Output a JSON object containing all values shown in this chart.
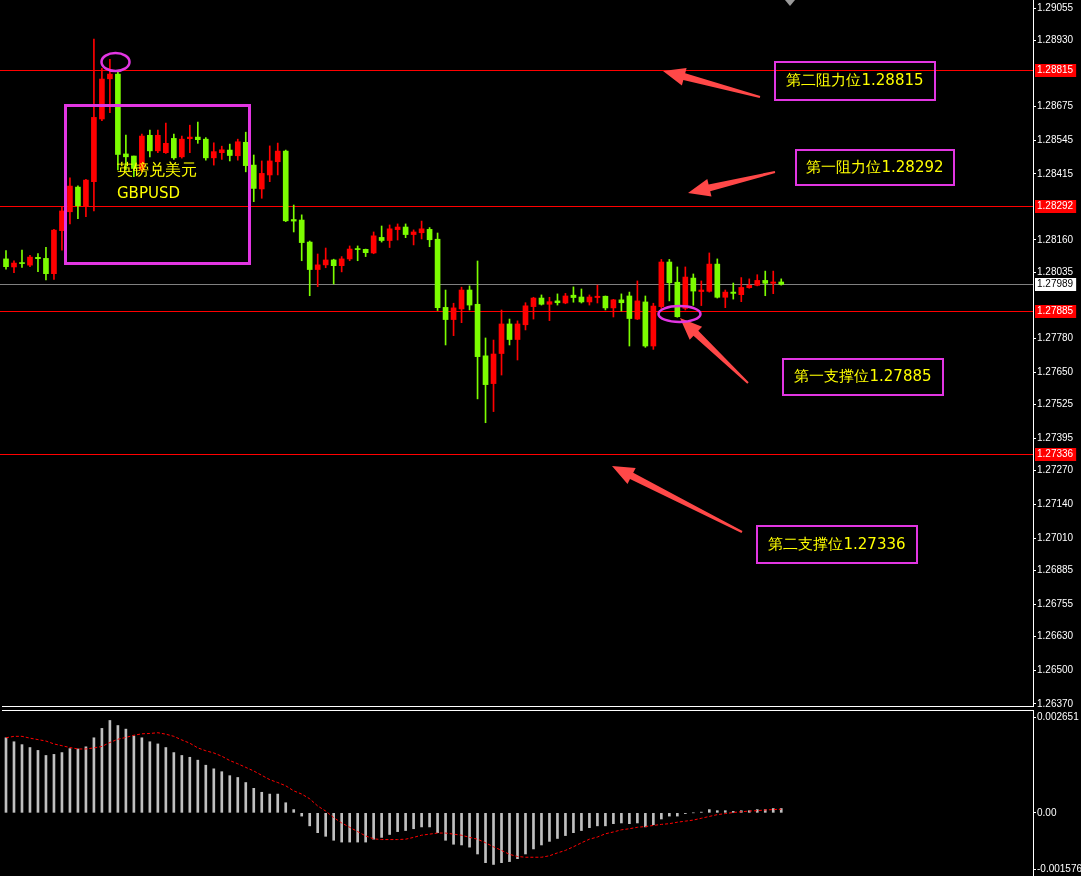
{
  "chart_data": [
    {
      "type": "candlestick",
      "title": "英镑兑美元",
      "subtitle": "GBPUSD",
      "categories": [
        null,
        null,
        null,
        null,
        null,
        null,
        null,
        null,
        null,
        null,
        null,
        null,
        null,
        null,
        null,
        null,
        null,
        null,
        null,
        null,
        null,
        null,
        null,
        null,
        null,
        null,
        null,
        null,
        null,
        null,
        null,
        null,
        null,
        null,
        null,
        null,
        null,
        null,
        null,
        null,
        null,
        null,
        null,
        null,
        null,
        null,
        null,
        null,
        null,
        null,
        null,
        null,
        null,
        null,
        null,
        null,
        null,
        null,
        null,
        null,
        null,
        null,
        null,
        null,
        null,
        null,
        null,
        null,
        null,
        null,
        null,
        null,
        null,
        null,
        null,
        null,
        null,
        null,
        null,
        null,
        null,
        null,
        null,
        null,
        null,
        null,
        null,
        null,
        null,
        null,
        null,
        null,
        null,
        null,
        null,
        null,
        null,
        null,
        null,
        null,
        null,
        null,
        null,
        null,
        null,
        null,
        null,
        null,
        null,
        null,
        null,
        null,
        null,
        null,
        null,
        null,
        null,
        null,
        null,
        null,
        null,
        null,
        null,
        null,
        null,
        null,
        null,
        null,
        null
      ],
      "ohlc": [
        [
          1.28087,
          1.28119,
          1.28047,
          1.28057
        ],
        [
          1.28056,
          1.2808,
          1.28034,
          1.28071
        ],
        [
          1.28071,
          1.28121,
          1.28054,
          1.28069
        ],
        [
          1.28063,
          1.28101,
          1.28057,
          1.28094
        ],
        [
          1.28093,
          1.28108,
          1.28038,
          1.28088
        ],
        [
          1.28089,
          1.28132,
          1.28006,
          1.2803
        ],
        [
          1.2803,
          1.28201,
          1.28008,
          1.28198
        ],
        [
          1.28196,
          1.28288,
          1.28121,
          1.28272
        ],
        [
          1.28269,
          1.284,
          1.28222,
          1.28368
        ],
        [
          1.28364,
          1.28369,
          1.28242,
          1.28292
        ],
        [
          1.28291,
          1.28394,
          1.2825,
          1.28391
        ],
        [
          1.28385,
          1.28935,
          1.28272,
          1.28633
        ],
        [
          1.28627,
          1.28822,
          1.2862,
          1.28781
        ],
        [
          1.28782,
          1.28857,
          1.28651,
          1.288
        ],
        [
          1.288,
          1.28809,
          1.2843,
          1.2849
        ],
        [
          1.28492,
          1.28565,
          1.2843,
          1.28481
        ],
        [
          1.28484,
          1.28484,
          1.28404,
          1.28436
        ],
        [
          1.2843,
          1.28569,
          1.28423,
          1.28561
        ],
        [
          1.28564,
          1.28584,
          1.28481,
          1.28504
        ],
        [
          1.28504,
          1.28584,
          1.28497,
          1.28564
        ],
        [
          1.28497,
          1.28611,
          1.28494,
          1.28533
        ],
        [
          1.28552,
          1.28569,
          1.28471,
          1.28477
        ],
        [
          1.28481,
          1.28561,
          1.28476,
          1.28549
        ],
        [
          1.28551,
          1.28603,
          1.28497,
          1.28557
        ],
        [
          1.28557,
          1.28615,
          1.28533,
          1.28547
        ],
        [
          1.28549,
          1.28555,
          1.28468,
          1.28477
        ],
        [
          1.28477,
          1.28535,
          1.28449,
          1.28501
        ],
        [
          1.28497,
          1.28522,
          1.28471,
          1.28508
        ],
        [
          1.28507,
          1.2853,
          1.28465,
          1.28486
        ],
        [
          1.28485,
          1.28549,
          1.28468,
          1.28539
        ],
        [
          1.28537,
          1.28576,
          1.28423,
          1.28447
        ],
        [
          1.28449,
          1.28488,
          1.28308,
          1.28359
        ],
        [
          1.28357,
          1.28465,
          1.28321,
          1.28417
        ],
        [
          1.28411,
          1.28523,
          1.28385,
          1.28465
        ],
        [
          1.28462,
          1.28534,
          1.28411,
          1.28503
        ],
        [
          1.28503,
          1.28507,
          1.28231,
          1.28234
        ],
        [
          1.28239,
          1.28295,
          1.28191,
          1.28233
        ],
        [
          1.28237,
          1.28257,
          1.2808,
          1.2815
        ],
        [
          1.28152,
          1.28156,
          1.27945,
          1.28046
        ],
        [
          1.28046,
          1.28106,
          1.2798,
          1.28064
        ],
        [
          1.28064,
          1.28129,
          1.28053,
          1.28083
        ],
        [
          1.28083,
          1.28086,
          1.2799,
          1.28061
        ],
        [
          1.28061,
          1.28096,
          1.28037,
          1.28087
        ],
        [
          1.28087,
          1.28137,
          1.2808,
          1.28125
        ],
        [
          1.28125,
          1.28137,
          1.2808,
          1.28123
        ],
        [
          1.28124,
          1.28125,
          1.28096,
          1.28111
        ],
        [
          1.2811,
          1.28191,
          1.28107,
          1.28176
        ],
        [
          1.2817,
          1.28214,
          1.28152,
          1.28158
        ],
        [
          1.28158,
          1.28218,
          1.28131,
          1.28203
        ],
        [
          1.282,
          1.28222,
          1.2816,
          1.2821
        ],
        [
          1.2821,
          1.28222,
          1.28169,
          1.28181
        ],
        [
          1.28181,
          1.28199,
          1.28141,
          1.28191
        ],
        [
          1.28188,
          1.28233,
          1.28164,
          1.28203
        ],
        [
          1.28201,
          1.28208,
          1.28134,
          1.28161
        ],
        [
          1.28163,
          1.28187,
          1.27888,
          1.27899
        ],
        [
          1.279,
          1.27967,
          1.27755,
          1.27853
        ],
        [
          1.27853,
          1.27916,
          1.27791,
          1.27898
        ],
        [
          1.27894,
          1.27978,
          1.27841,
          1.27967
        ],
        [
          1.27967,
          1.27983,
          1.2789,
          1.27909
        ],
        [
          1.27912,
          1.28079,
          1.27547,
          1.2771
        ],
        [
          1.27713,
          1.27782,
          1.27455,
          1.27602
        ],
        [
          1.27606,
          1.27774,
          1.27498,
          1.2772
        ],
        [
          1.27722,
          1.2789,
          1.27639,
          1.27836
        ],
        [
          1.27836,
          1.27855,
          1.27755,
          1.27776
        ],
        [
          1.27776,
          1.27848,
          1.27697,
          1.27836
        ],
        [
          1.27833,
          1.27918,
          1.27813,
          1.27906
        ],
        [
          1.27903,
          1.27939,
          1.27855,
          1.27936
        ],
        [
          1.27936,
          1.27948,
          1.27909,
          1.27912
        ],
        [
          1.27912,
          1.27939,
          1.27849,
          1.27922
        ],
        [
          1.27925,
          1.27952,
          1.27909,
          1.27918
        ],
        [
          1.27917,
          1.27954,
          1.27914,
          1.27944
        ],
        [
          1.27947,
          1.27979,
          1.2792,
          1.27938
        ],
        [
          1.2794,
          1.27971,
          1.27917,
          1.27921
        ],
        [
          1.27921,
          1.27948,
          1.27909,
          1.2794
        ],
        [
          1.27938,
          1.27986,
          1.27917,
          1.27943
        ],
        [
          1.27943,
          1.27944,
          1.2789,
          1.27898
        ],
        [
          1.27898,
          1.27931,
          1.27863,
          1.27929
        ],
        [
          1.27929,
          1.27952,
          1.27886,
          1.27918
        ],
        [
          1.27944,
          1.27959,
          1.27751,
          1.27857
        ],
        [
          1.27855,
          1.28002,
          1.27853,
          1.27925
        ],
        [
          1.27921,
          1.27944,
          1.27746,
          1.27751
        ],
        [
          1.27751,
          1.27916,
          1.27738,
          1.27905
        ],
        [
          1.27903,
          1.28085,
          1.27896,
          1.28075
        ],
        [
          1.28075,
          1.28085,
          1.27925,
          1.27995
        ],
        [
          1.27997,
          1.28056,
          1.27862,
          1.27864
        ],
        [
          1.27896,
          1.28056,
          1.2789,
          1.28017
        ],
        [
          1.28013,
          1.28029,
          1.27908,
          1.27963
        ],
        [
          1.27961,
          1.28002,
          1.27907,
          1.27967
        ],
        [
          1.27962,
          1.2811,
          1.27959,
          1.28067
        ],
        [
          1.28067,
          1.28087,
          1.27936,
          1.27939
        ],
        [
          1.27939,
          1.27967,
          1.27899,
          1.27959
        ],
        [
          1.27959,
          1.27994,
          1.27932,
          1.27954
        ],
        [
          1.27949,
          1.28015,
          1.27922,
          1.27977
        ],
        [
          1.27976,
          1.2801,
          1.27974,
          1.27985
        ],
        [
          1.27985,
          1.28026,
          1.27983,
          1.28004
        ],
        [
          1.28004,
          1.2804,
          1.27945,
          1.27993
        ],
        [
          1.27993,
          1.2804,
          1.27953,
          1.27998
        ],
        [
          1.27998,
          1.2801,
          1.27986,
          1.27989
        ],
        null,
        null,
        null,
        null,
        null,
        null,
        null,
        null,
        null,
        null,
        null,
        null,
        null,
        null,
        null,
        null,
        null,
        null,
        null,
        null,
        null,
        null,
        null,
        null,
        null,
        null,
        null,
        null,
        null,
        null,
        null
      ],
      "colors": [
        "#7cfc00",
        "#ff0000",
        "#7cfc00",
        "#ff0000",
        "#7cfc00",
        "#7cfc00",
        "#ff0000",
        "#ff0000",
        "#ff0000",
        "#7cfc00",
        "#ff0000",
        "#ff0000",
        "#ff0000",
        "#ff0000",
        "#7cfc00",
        "#7cfc00",
        "#7cfc00",
        "#ff0000",
        "#7cfc00",
        "#ff0000",
        "#ff0000",
        "#7cfc00",
        "#ff0000",
        "#ff0000",
        "#7cfc00",
        "#7cfc00",
        "#ff0000",
        "#ff0000",
        "#7cfc00",
        "#ff0000",
        "#7cfc00",
        "#7cfc00",
        "#ff0000",
        "#ff0000",
        "#ff0000",
        "#7cfc00",
        "#7cfc00",
        "#7cfc00",
        "#7cfc00",
        "#ff0000",
        "#ff0000",
        "#7cfc00",
        "#ff0000",
        "#ff0000",
        "#7cfc00",
        "#7cfc00",
        "#ff0000",
        "#7cfc00",
        "#ff0000",
        "#ff0000",
        "#7cfc00",
        "#ff0000",
        "#ff0000",
        "#7cfc00",
        "#7cfc00",
        "#7cfc00",
        "#ff0000",
        "#ff0000",
        "#7cfc00",
        "#7cfc00",
        "#7cfc00",
        "#ff0000",
        "#ff0000",
        "#7cfc00",
        "#ff0000",
        "#ff0000",
        "#ff0000",
        "#7cfc00",
        "#ff0000",
        "#7cfc00",
        "#ff0000",
        "#7cfc00",
        "#7cfc00",
        "#ff0000",
        "#ff0000",
        "#7cfc00",
        "#ff0000",
        "#7cfc00",
        "#7cfc00",
        "#ff0000",
        "#7cfc00",
        "#ff0000",
        "#ff0000",
        "#7cfc00",
        "#7cfc00",
        "#ff0000",
        "#7cfc00",
        "#ff0000",
        "#ff0000",
        "#7cfc00",
        "#ff0000",
        "#7cfc00",
        "#ff0000",
        "#ff0000",
        "#ff0000",
        "#7cfc00",
        "#ff0000",
        "#7cfc00",
        null,
        null,
        null,
        null,
        null,
        null,
        null,
        null,
        null,
        null,
        null,
        null,
        null,
        null,
        null,
        null,
        null,
        null,
        null,
        null,
        null,
        null,
        null,
        null,
        null,
        null,
        null,
        null,
        null,
        null,
        null
      ],
      "ylim": [
        1.26362,
        1.29086
      ],
      "yticks": [
        1.29055,
        {
          "value": 1.2893,
          "label": "1.28930"
        },
        1.28675,
        1.28545,
        1.28415,
        {
          "value": 1.2816,
          "label": "1.28160"
        },
        1.28035,
        {
          "value": 1.2778,
          "label": "1.27780"
        },
        {
          "value": 1.2765,
          "label": "1.27650"
        },
        1.27525,
        1.27395,
        {
          "value": 1.2727,
          "label": "1.27270"
        },
        {
          "value": 1.2714,
          "label": "1.27140"
        },
        {
          "value": 1.2701,
          "label": "1.27010"
        },
        1.26885,
        1.26755,
        {
          "value": 1.2663,
          "label": "1.26630"
        },
        {
          "value": 1.265,
          "label": "1.26500"
        },
        {
          "value": 1.2637,
          "label": "1.26370"
        }
      ],
      "tick_labels": "y",
      "ref_lines": [
        {
          "axis": "y",
          "value": 1.28815,
          "label": "1.28815",
          "color": "#ff0000"
        },
        {
          "axis": "y",
          "value": 1.28292,
          "label": "1.28292",
          "color": "#ff0000"
        },
        {
          "axis": "y",
          "value": 1.27989,
          "label": "1.27989",
          "color": "#808080"
        },
        {
          "axis": "y",
          "value": 1.27885,
          "label": "1.27885",
          "color": "#ff0000"
        },
        {
          "axis": "y",
          "value": 1.27336,
          "label": "1.27336",
          "color": "#ff0000"
        }
      ],
      "annotations": [
        "第二阻力位1.28815",
        "第一阻力位1.28292",
        "第一支撑位1.27885",
        "第二支撑位1.27336"
      ]
    },
    {
      "type": "bar",
      "categories": [
        null,
        null,
        null,
        null,
        null,
        null,
        null,
        null,
        null,
        null,
        null,
        null,
        null,
        null,
        null,
        null,
        null,
        null,
        null,
        null,
        null,
        null,
        null,
        null,
        null,
        null,
        null,
        null,
        null,
        null,
        null,
        null,
        null,
        null,
        null,
        null,
        null,
        null,
        null,
        null,
        null,
        null,
        null,
        null,
        null,
        null,
        null,
        null,
        null,
        null,
        null,
        null,
        null,
        null,
        null,
        null,
        null,
        null,
        null,
        null,
        null,
        null,
        null,
        null,
        null,
        null,
        null,
        null,
        null,
        null,
        null,
        null,
        null,
        null,
        null,
        null,
        null,
        null,
        null,
        null,
        null,
        null,
        null,
        null,
        null,
        null,
        null,
        null,
        null,
        null,
        null,
        null,
        null,
        null,
        null,
        null,
        null,
        null,
        null,
        null,
        null,
        null,
        null,
        null,
        null,
        null,
        null,
        null,
        null,
        null,
        null,
        null,
        null,
        null,
        null,
        null,
        null,
        null,
        null,
        null,
        null,
        null,
        null,
        null,
        null,
        null,
        null,
        null,
        null
      ],
      "series": [
        {
          "type": "bar",
          "color": "#c0c0c0",
          "values": [
            0.00208,
            0.00197,
            0.00189,
            0.00181,
            0.00173,
            0.00159,
            0.00162,
            0.00167,
            0.00178,
            0.00177,
            0.00183,
            0.00208,
            0.00234,
            0.00256,
            0.00242,
            0.00232,
            0.00213,
            0.00208,
            0.00197,
            0.00191,
            0.00181,
            0.00167,
            0.00159,
            0.00154,
            0.00146,
            0.00132,
            0.00122,
            0.00114,
            0.00103,
            0.00098,
            0.00084,
            0.00068,
            0.00057,
            0.00052,
            0.00052,
            0.00028,
            9e-05,
            -9e-05,
            -0.00036,
            -0.00055,
            -0.00065,
            -0.00076,
            -0.00081,
            -0.00081,
            -0.00081,
            -0.00081,
            -0.00073,
            -0.00068,
            -0.0006,
            -0.00052,
            -0.00049,
            -0.00044,
            -0.00039,
            -0.00039,
            -0.00055,
            -0.00076,
            -0.00087,
            -0.00089,
            -0.00095,
            -0.00114,
            -0.00138,
            -0.00143,
            -0.00138,
            -0.00135,
            -0.00127,
            -0.00114,
            -0.001,
            -0.00089,
            -0.00079,
            -0.00071,
            -0.00063,
            -0.00055,
            -0.00049,
            -0.00041,
            -0.00036,
            -0.00036,
            -0.0003,
            -0.00028,
            -0.0003,
            -0.00028,
            -0.00039,
            -0.00033,
            -0.00017,
            -9e-05,
            -9e-05,
            -2e-05,
            0,
            2e-05,
            9e-05,
            6e-05,
            6e-05,
            4e-05,
            6e-05,
            6e-05,
            9e-05,
            9e-05,
            0.00012,
            0.00012,
            null,
            null,
            null,
            null,
            null,
            null,
            null,
            null,
            null,
            null,
            null,
            null,
            null,
            null,
            null,
            null,
            null,
            null,
            null,
            null,
            null,
            null,
            null,
            null,
            null,
            null,
            null,
            null,
            null,
            null,
            null
          ]
        },
        {
          "type": "line",
          "color": "#ff0000",
          "line_style": "dotted",
          "values": [
            0.00208,
            0.00212,
            0.00212,
            0.00207,
            0.00203,
            0.00199,
            0.00191,
            0.00186,
            0.00181,
            0.00177,
            0.00177,
            0.0018,
            0.00184,
            0.00195,
            0.00204,
            0.00209,
            0.00215,
            0.00219,
            0.0022,
            0.00222,
            0.00218,
            0.00212,
            0.00202,
            0.00193,
            0.0018,
            0.00172,
            0.00166,
            0.00157,
            0.00145,
            0.00136,
            0.00126,
            0.00116,
            0.00104,
            0.00092,
            0.00084,
            0.00075,
            0.00061,
            0.00052,
            0.00039,
            0.00019,
            5e-05,
            -0.00013,
            -0.00028,
            -0.0004,
            -0.00052,
            -0.00064,
            -0.00072,
            -0.00074,
            -0.00074,
            -0.00074,
            -0.00073,
            -0.00068,
            -0.00062,
            -0.00059,
            -0.00056,
            -0.00056,
            -0.00059,
            -0.00062,
            -0.00068,
            -0.00073,
            -0.00083,
            -0.00094,
            -0.00104,
            -0.00115,
            -0.00121,
            -0.00123,
            -0.00123,
            -0.00123,
            -0.00119,
            -0.00111,
            -0.00104,
            -0.00094,
            -0.00083,
            -0.00073,
            -0.00067,
            -0.00058,
            -0.00053,
            -0.00047,
            -0.00044,
            -0.0004,
            -0.00038,
            -0.00035,
            -0.00032,
            -0.0003,
            -0.00026,
            -0.00023,
            -0.0002,
            -0.00015,
            -0.0001,
            -5e-05,
            -2e-05,
            1e-05,
            3e-05,
            5e-05,
            6e-05,
            8e-05,
            9e-05,
            0.0001,
            null,
            null,
            null,
            null,
            null,
            null,
            null,
            null,
            null,
            null,
            null,
            null,
            null,
            null,
            null,
            null,
            null,
            null,
            null,
            null,
            null,
            null,
            null,
            null,
            null,
            null,
            null,
            null,
            null,
            null,
            null
          ]
        }
      ],
      "ylim": [
        -0.00175,
        0.00285
      ],
      "yticks": [
        0.002651,
        {
          "value": 0,
          "label": "0.00"
        },
        -0.001576
      ],
      "tick_labels": "y"
    }
  ]
}
